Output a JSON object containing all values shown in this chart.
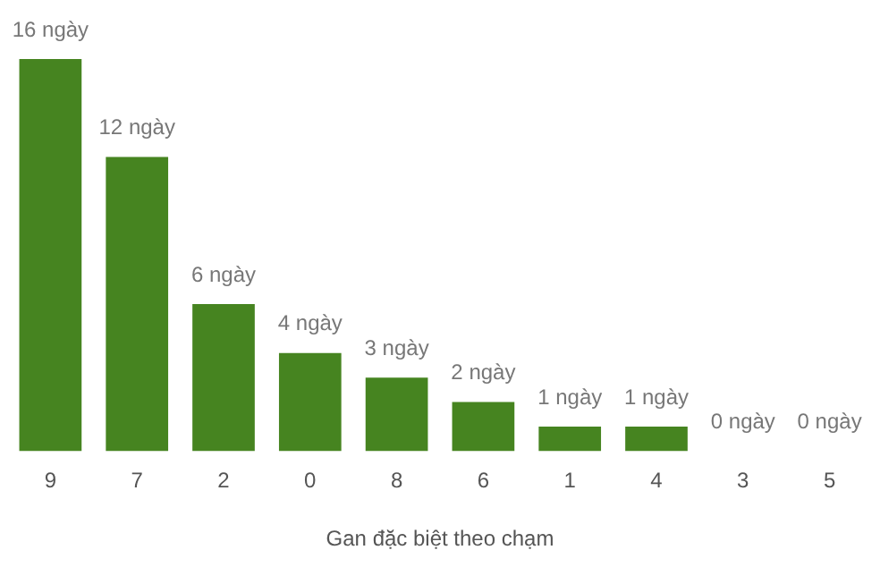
{
  "chart_data": {
    "type": "bar",
    "xlabel": "Gan đặc biệt theo chạm",
    "categories": [
      "9",
      "7",
      "2",
      "0",
      "8",
      "6",
      "1",
      "4",
      "3",
      "5"
    ],
    "values": [
      16,
      12,
      6,
      4,
      3,
      2,
      1,
      1,
      0,
      0
    ],
    "value_labels": [
      "16 ngày",
      "12 ngày",
      "6 ngày",
      "4 ngày",
      "3 ngày",
      "2 ngày",
      "1 ngày",
      "1 ngày",
      "0 ngày",
      "0 ngày"
    ],
    "color": "#468420",
    "grid": false,
    "legend": false,
    "tick_labels": "x"
  }
}
